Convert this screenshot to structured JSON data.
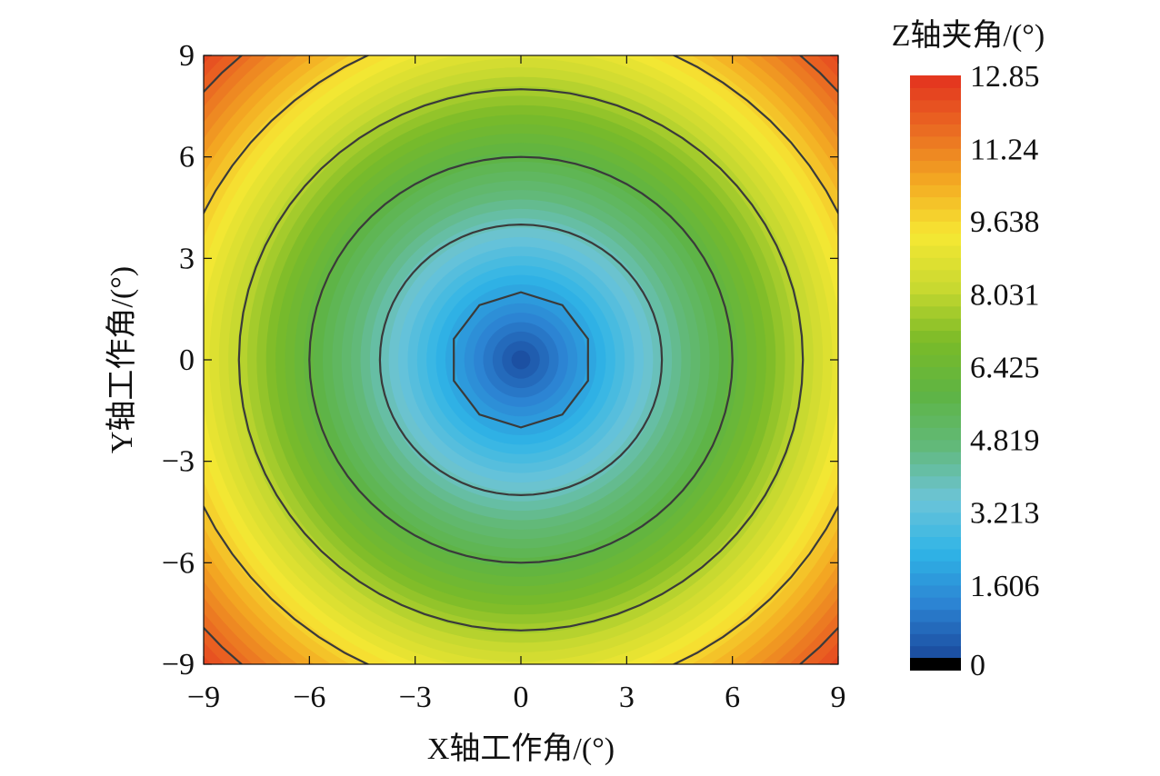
{
  "chart_data": {
    "type": "heatmap",
    "subtype": "filled-contour",
    "xlabel": "X轴工作角/(°)",
    "ylabel": "Y轴工作角/(°)",
    "xlim": [
      -9,
      9
    ],
    "ylim": [
      -9,
      9
    ],
    "x_ticks": [
      -9,
      -6,
      -3,
      0,
      3,
      6,
      9
    ],
    "y_ticks": [
      -9,
      -6,
      -3,
      0,
      3,
      6,
      9
    ],
    "x_tick_labels": [
      "−9",
      "−6",
      "−3",
      "0",
      "3",
      "6",
      "9"
    ],
    "y_tick_labels": [
      "−9",
      "−6",
      "−3",
      "0",
      "3",
      "6",
      "9"
    ],
    "grid": false,
    "function": "z = sqrt(x^2 + y^2)",
    "z_range": [
      0,
      12.85
    ],
    "contour_levels": [
      2,
      4,
      6,
      8,
      10,
      12
    ],
    "colorbar": {
      "title": "Z轴夹角/(°)",
      "tick_values": [
        0,
        1.606,
        3.213,
        4.819,
        6.425,
        8.031,
        9.638,
        11.24,
        12.85
      ],
      "tick_labels": [
        "0",
        "1.606",
        "3.213",
        "4.819",
        "6.425",
        "8.031",
        "9.638",
        "11.24",
        "12.85"
      ],
      "placement": "right",
      "colors": [
        "#1a4a9c",
        "#2c82d2",
        "#2fb4e6",
        "#6cc4d8",
        "#62b97a",
        "#5eb443",
        "#7bbb28",
        "#c9d930",
        "#f6e833",
        "#f3a922",
        "#ea6a22",
        "#e3311f"
      ]
    }
  }
}
